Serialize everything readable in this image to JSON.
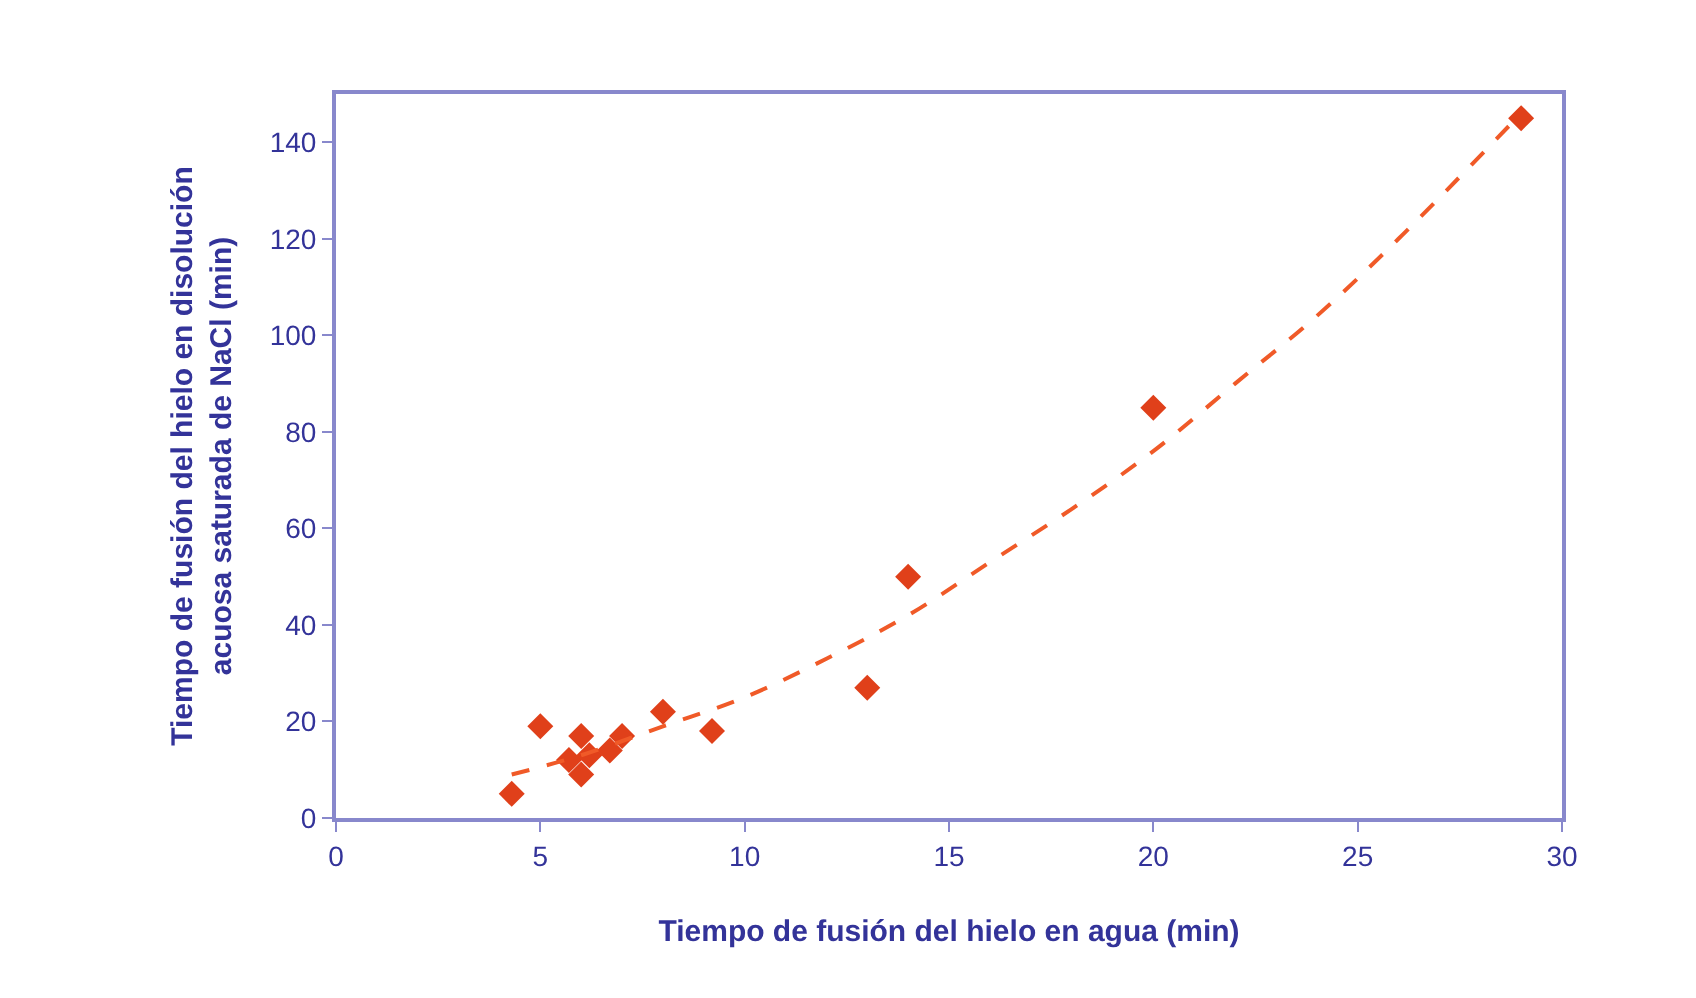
{
  "chart_data": {
    "type": "scatter",
    "xlabel": "Tiempo de fusión del hielo en agua (min)",
    "ylabel": "Tiempo de fusión del hielo en disolución\nacuosa saturada de NaCl (min)",
    "xlim": [
      0,
      30
    ],
    "xticks": [
      0,
      5,
      10,
      15,
      20,
      25,
      30
    ],
    "ylim": [
      0,
      150
    ],
    "yticks": [
      0,
      20,
      40,
      60,
      80,
      100,
      120,
      140
    ],
    "series": [
      {
        "marker": "diamond",
        "color": "#e0401a",
        "x": [
          4.3,
          5.0,
          5.7,
          6.0,
          6.0,
          6.2,
          6.7,
          7.0,
          8.0,
          9.2,
          13.0,
          14.0,
          20.0,
          29.0
        ],
        "values": [
          5,
          19,
          12,
          17,
          9,
          13,
          14,
          17,
          22,
          18,
          27,
          50,
          85,
          145
        ]
      },
      {
        "type": "line",
        "line_style": "dashed",
        "marker": "none",
        "color": "#f05a28",
        "x": [
          4.3,
          6,
          8,
          10,
          12,
          14,
          16,
          18,
          20,
          22,
          24,
          26,
          29
        ],
        "values": [
          9,
          13,
          19,
          25,
          33,
          42,
          53,
          64,
          76,
          90,
          104,
          120,
          146
        ]
      }
    ]
  }
}
